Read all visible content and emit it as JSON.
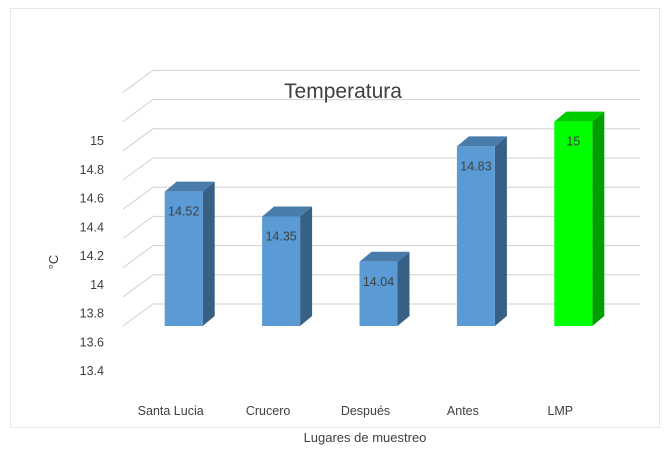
{
  "chart_data": {
    "type": "bar",
    "title": "Temperatura",
    "xlabel": "Lugares de muestreo",
    "ylabel": "°C",
    "categories": [
      "Santa Lucia",
      "Crucero",
      "Después",
      "Antes",
      "LMP"
    ],
    "values": [
      14.52,
      14.35,
      14.04,
      14.83,
      15
    ],
    "data_labels": [
      "14.52",
      "14.35",
      "14.04",
      "14.83",
      "15"
    ],
    "yticks": [
      "13.4",
      "13.6",
      "13.8",
      "14",
      "14.2",
      "14.4",
      "14.6",
      "14.8",
      "15"
    ],
    "ylim": [
      13.4,
      15.2
    ],
    "grid": true,
    "style": "3d-column",
    "colors": {
      "default_bar": "#5b9bd5",
      "highlight_bar": "#00ff00"
    },
    "bar_colors": [
      "#5b9bd5",
      "#5b9bd5",
      "#5b9bd5",
      "#5b9bd5",
      "#00ff00"
    ]
  }
}
